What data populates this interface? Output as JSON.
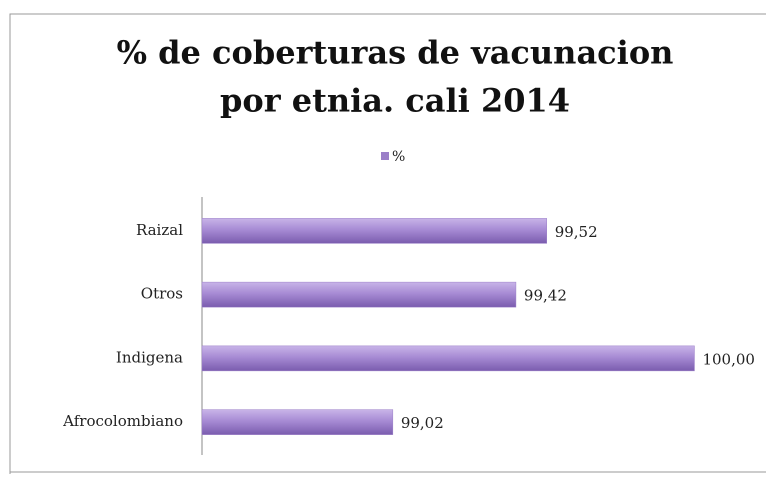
{
  "chart_data": {
    "type": "bar",
    "orientation": "horizontal",
    "title": [
      "% de coberturas de vacunacion",
      "por etnia. cali 2014"
    ],
    "categories": [
      "Raizal",
      "Otros",
      "Indigena",
      "Afrocolombiano"
    ],
    "series": [
      {
        "name": "%",
        "color": "#9b7fc8",
        "values": [
          99.52,
          99.42,
          100.0,
          99.02
        ],
        "value_labels": [
          "99,52",
          "99,42",
          "100,00",
          "99,02"
        ]
      }
    ],
    "xlim": [
      98.4,
      100.2
    ],
    "legend": "top"
  }
}
